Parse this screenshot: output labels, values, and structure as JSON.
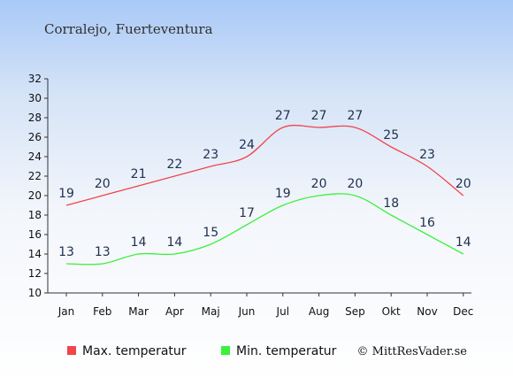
{
  "chart_data": {
    "type": "line",
    "title": "Corralejo, Fuerteventura",
    "xlabel": "",
    "ylabel": "",
    "categories": [
      "Jan",
      "Feb",
      "Mar",
      "Apr",
      "Maj",
      "Jun",
      "Jul",
      "Aug",
      "Sep",
      "Okt",
      "Nov",
      "Dec"
    ],
    "ylim": [
      10,
      32
    ],
    "yticks": [
      10,
      12,
      14,
      16,
      18,
      20,
      22,
      24,
      26,
      28,
      30,
      32
    ],
    "grid": false,
    "legend_position": "bottom-left",
    "series": [
      {
        "name": "Max. temperatur",
        "color": "#f0454a",
        "values": [
          19,
          20,
          21,
          22,
          23,
          24,
          27,
          27,
          27,
          25,
          23,
          20
        ]
      },
      {
        "name": "Min. temperatur",
        "color": "#3cf03c",
        "values": [
          13,
          13,
          14,
          14,
          15,
          17,
          19,
          20,
          20,
          18,
          16,
          14
        ]
      }
    ]
  },
  "credit": "© MittResVader.se"
}
